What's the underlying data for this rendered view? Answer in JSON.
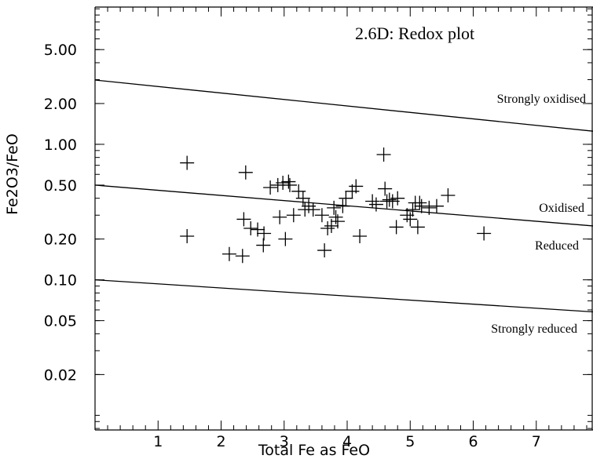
{
  "chart_data": {
    "type": "scatter",
    "title": "2.6D: Redox plot",
    "xlabel": "Total Fe as FeO",
    "ylabel": "Fe2O3/FeO",
    "xlim": [
      0,
      7.9
    ],
    "ylim": [
      0.0078,
      10.3
    ],
    "yscale": "log",
    "x_ticks": [
      1,
      2,
      3,
      4,
      5,
      6,
      7
    ],
    "x_tick_labels": [
      "1",
      "2",
      "3",
      "4",
      "5",
      "6",
      "7"
    ],
    "y_ticks": [
      5.0,
      2.0,
      1.0,
      0.5,
      0.2,
      0.1,
      0.05,
      0.02
    ],
    "y_tick_labels": [
      "5.00",
      "2.00",
      "1.00",
      "0.50",
      "0.20",
      "0.10",
      "0.05",
      "0.02"
    ],
    "grid": false,
    "reference_lines": [
      {
        "label": "Strongly oxidised",
        "x": [
          0,
          7.9
        ],
        "y": [
          2.98,
          1.25
        ]
      },
      {
        "label": "Oxidised",
        "x": [
          0,
          7.9
        ],
        "y": [
          0.5,
          0.25
        ]
      },
      {
        "label": "Reduced",
        "x": [],
        "y": []
      },
      {
        "label": "Strongly reduced",
        "x": [
          0,
          7.9
        ],
        "y": [
          0.1,
          0.058
        ]
      }
    ],
    "points": [
      {
        "x": 1.46,
        "y": 0.73
      },
      {
        "x": 1.46,
        "y": 0.21
      },
      {
        "x": 2.13,
        "y": 0.155
      },
      {
        "x": 2.34,
        "y": 0.15
      },
      {
        "x": 2.36,
        "y": 0.28
      },
      {
        "x": 2.39,
        "y": 0.62
      },
      {
        "x": 2.47,
        "y": 0.24
      },
      {
        "x": 2.58,
        "y": 0.235
      },
      {
        "x": 2.67,
        "y": 0.18
      },
      {
        "x": 2.68,
        "y": 0.22
      },
      {
        "x": 2.78,
        "y": 0.48
      },
      {
        "x": 2.9,
        "y": 0.5
      },
      {
        "x": 2.93,
        "y": 0.29
      },
      {
        "x": 2.98,
        "y": 0.52
      },
      {
        "x": 3.02,
        "y": 0.2
      },
      {
        "x": 3.07,
        "y": 0.53
      },
      {
        "x": 3.09,
        "y": 0.5
      },
      {
        "x": 3.15,
        "y": 0.3
      },
      {
        "x": 3.23,
        "y": 0.45
      },
      {
        "x": 3.3,
        "y": 0.4
      },
      {
        "x": 3.33,
        "y": 0.33
      },
      {
        "x": 3.39,
        "y": 0.35
      },
      {
        "x": 3.46,
        "y": 0.33
      },
      {
        "x": 3.6,
        "y": 0.3
      },
      {
        "x": 3.64,
        "y": 0.165
      },
      {
        "x": 3.69,
        "y": 0.24
      },
      {
        "x": 3.75,
        "y": 0.25
      },
      {
        "x": 3.79,
        "y": 0.34
      },
      {
        "x": 3.82,
        "y": 0.29
      },
      {
        "x": 3.85,
        "y": 0.27
      },
      {
        "x": 3.93,
        "y": 0.35
      },
      {
        "x": 3.98,
        "y": 0.4
      },
      {
        "x": 4.08,
        "y": 0.45
      },
      {
        "x": 4.14,
        "y": 0.49
      },
      {
        "x": 4.2,
        "y": 0.21
      },
      {
        "x": 4.4,
        "y": 0.38
      },
      {
        "x": 4.46,
        "y": 0.36
      },
      {
        "x": 4.58,
        "y": 0.84
      },
      {
        "x": 4.6,
        "y": 0.47
      },
      {
        "x": 4.63,
        "y": 0.38
      },
      {
        "x": 4.67,
        "y": 0.39
      },
      {
        "x": 4.72,
        "y": 0.38
      },
      {
        "x": 4.78,
        "y": 0.245
      },
      {
        "x": 4.8,
        "y": 0.4
      },
      {
        "x": 4.95,
        "y": 0.3
      },
      {
        "x": 5.0,
        "y": 0.28
      },
      {
        "x": 5.04,
        "y": 0.33
      },
      {
        "x": 5.08,
        "y": 0.37
      },
      {
        "x": 5.12,
        "y": 0.245
      },
      {
        "x": 5.15,
        "y": 0.37
      },
      {
        "x": 5.18,
        "y": 0.35
      },
      {
        "x": 5.3,
        "y": 0.34
      },
      {
        "x": 5.42,
        "y": 0.35
      },
      {
        "x": 5.6,
        "y": 0.42
      },
      {
        "x": 6.17,
        "y": 0.22
      }
    ]
  }
}
